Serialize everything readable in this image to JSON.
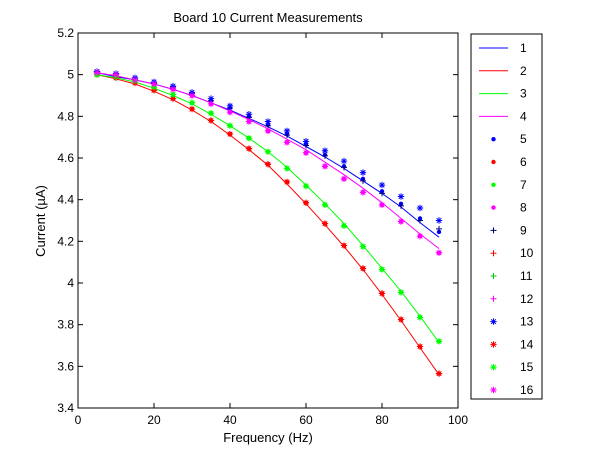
{
  "chart_data": {
    "type": "line",
    "title": "Board 10 Current Measurements",
    "xlabel": "Frequency (Hz)",
    "ylabel": "Current (µA)",
    "xlim": [
      0,
      100
    ],
    "ylim": [
      3.4,
      5.2
    ],
    "xticks": [
      "0",
      "20",
      "40",
      "60",
      "80",
      "100"
    ],
    "yticks": [
      "3.4",
      "3.6",
      "3.8",
      "4",
      "4.2",
      "4.4",
      "4.6",
      "4.8",
      "5",
      "5.2"
    ],
    "grid": false,
    "legend_position": "outside-right",
    "x": [
      5,
      10,
      15,
      20,
      25,
      30,
      35,
      40,
      45,
      50,
      55,
      60,
      65,
      70,
      75,
      80,
      85,
      90,
      95
    ],
    "series": [
      {
        "name": "1",
        "style": "line",
        "color": "#0000ff",
        "values": [
          5.01,
          4.99,
          4.975,
          4.955,
          4.93,
          4.9,
          4.865,
          4.83,
          4.79,
          4.75,
          4.705,
          4.655,
          4.605,
          4.55,
          4.49,
          4.43,
          4.365,
          4.29,
          4.22
        ]
      },
      {
        "name": "2",
        "style": "line",
        "color": "#ff0000",
        "values": [
          5.0,
          4.98,
          4.955,
          4.92,
          4.88,
          4.83,
          4.775,
          4.71,
          4.64,
          4.565,
          4.475,
          4.38,
          4.28,
          4.175,
          4.065,
          3.945,
          3.82,
          3.69,
          3.56
        ]
      },
      {
        "name": "3",
        "style": "line",
        "color": "#00ff00",
        "values": [
          5.0,
          4.985,
          4.965,
          4.935,
          4.9,
          4.86,
          4.81,
          4.755,
          4.695,
          4.63,
          4.555,
          4.47,
          4.38,
          4.285,
          4.18,
          4.07,
          3.96,
          3.84,
          3.715
        ]
      },
      {
        "name": "4",
        "style": "line",
        "color": "#ff00ff",
        "values": [
          5.01,
          4.995,
          4.975,
          4.955,
          4.93,
          4.9,
          4.865,
          4.825,
          4.785,
          4.74,
          4.69,
          4.64,
          4.58,
          4.52,
          4.455,
          4.385,
          4.31,
          4.235,
          4.165
        ]
      },
      {
        "name": "5",
        "style": "dot",
        "color": "#0000ff",
        "values": [
          5.01,
          5.0,
          4.98,
          4.96,
          4.94,
          4.91,
          4.875,
          4.84,
          4.8,
          4.76,
          4.715,
          4.665,
          4.615,
          4.56,
          4.5,
          4.44,
          4.38,
          4.31,
          4.245
        ]
      },
      {
        "name": "6",
        "style": "dot",
        "color": "#ff0000",
        "values": [
          5.0,
          4.985,
          4.96,
          4.925,
          4.885,
          4.835,
          4.78,
          4.715,
          4.645,
          4.57,
          4.485,
          4.385,
          4.285,
          4.18,
          4.07,
          3.95,
          3.825,
          3.695,
          3.565
        ]
      },
      {
        "name": "7",
        "style": "dot",
        "color": "#00ff00",
        "values": [
          5.0,
          4.99,
          4.97,
          4.94,
          4.905,
          4.865,
          4.815,
          4.755,
          4.695,
          4.63,
          4.55,
          4.465,
          4.375,
          4.275,
          4.175,
          4.065,
          3.955,
          3.835,
          3.72
        ]
      },
      {
        "name": "8",
        "style": "dot",
        "color": "#ff00ff",
        "values": [
          5.01,
          5.0,
          4.975,
          4.955,
          4.93,
          4.9,
          4.86,
          4.82,
          4.775,
          4.73,
          4.675,
          4.625,
          4.56,
          4.5,
          4.435,
          4.375,
          4.295,
          4.225,
          4.145
        ]
      },
      {
        "name": "9",
        "style": "plus",
        "color": "#000080",
        "values": [
          5.01,
          5.0,
          4.98,
          4.96,
          4.94,
          4.91,
          4.875,
          4.84,
          4.795,
          4.755,
          4.71,
          4.66,
          4.61,
          4.555,
          4.49,
          4.43,
          4.37,
          4.3,
          4.26
        ]
      },
      {
        "name": "10",
        "style": "plus",
        "color": "#ff0000",
        "values": [
          5.0,
          4.985,
          4.96,
          4.925,
          4.885,
          4.835,
          4.78,
          4.715,
          4.645,
          4.57,
          4.485,
          4.385,
          4.285,
          4.18,
          4.07,
          3.95,
          3.825,
          3.695,
          3.565
        ]
      },
      {
        "name": "11",
        "style": "plus",
        "color": "#00cc00",
        "values": [
          5.0,
          4.99,
          4.97,
          4.94,
          4.905,
          4.865,
          4.815,
          4.755,
          4.695,
          4.63,
          4.55,
          4.465,
          4.375,
          4.275,
          4.175,
          4.065,
          3.955,
          3.835,
          3.72
        ]
      },
      {
        "name": "12",
        "style": "plus",
        "color": "#ff00ff",
        "values": [
          5.01,
          5.0,
          4.975,
          4.955,
          4.93,
          4.9,
          4.86,
          4.82,
          4.775,
          4.73,
          4.675,
          4.625,
          4.56,
          4.5,
          4.435,
          4.375,
          4.295,
          4.225,
          4.145
        ]
      },
      {
        "name": "13",
        "style": "star",
        "color": "#0000ff",
        "values": [
          5.015,
          5.005,
          4.985,
          4.965,
          4.945,
          4.915,
          4.885,
          4.85,
          4.81,
          4.775,
          4.73,
          4.68,
          4.635,
          4.585,
          4.53,
          4.47,
          4.415,
          4.36,
          4.3
        ]
      },
      {
        "name": "14",
        "style": "star",
        "color": "#ff0000",
        "values": [
          5.0,
          4.985,
          4.96,
          4.925,
          4.885,
          4.835,
          4.78,
          4.715,
          4.645,
          4.57,
          4.485,
          4.385,
          4.285,
          4.18,
          4.07,
          3.95,
          3.825,
          3.695,
          3.565
        ]
      },
      {
        "name": "15",
        "style": "star",
        "color": "#00ff00",
        "values": [
          5.0,
          4.99,
          4.97,
          4.94,
          4.905,
          4.865,
          4.815,
          4.755,
          4.695,
          4.63,
          4.55,
          4.465,
          4.375,
          4.275,
          4.175,
          4.065,
          3.955,
          3.835,
          3.72
        ]
      },
      {
        "name": "16",
        "style": "star",
        "color": "#ff00ff",
        "values": [
          5.01,
          5.0,
          4.975,
          4.955,
          4.93,
          4.9,
          4.86,
          4.82,
          4.775,
          4.73,
          4.675,
          4.625,
          4.56,
          4.5,
          4.435,
          4.375,
          4.295,
          4.225,
          4.145
        ]
      }
    ]
  }
}
